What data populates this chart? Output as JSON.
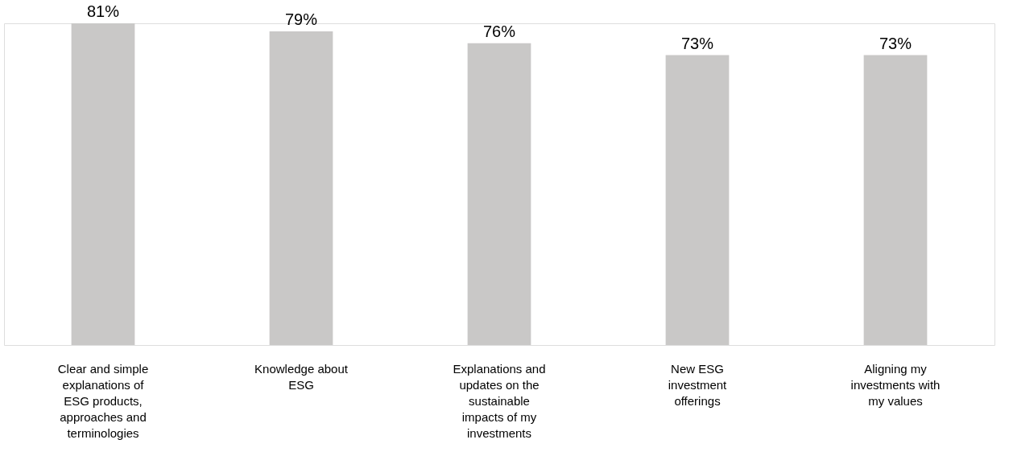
{
  "chart_data": {
    "type": "bar",
    "categories": [
      "Clear and simple explanations of ESG products, approaches and terminologies",
      "Knowledge about ESG",
      "Explanations and updates on the sustainable impacts of my investments",
      "New ESG investment offerings",
      "Aligning my investments with my values"
    ],
    "values": [
      81,
      79,
      76,
      73,
      73
    ],
    "color": "#c9c8c7",
    "data_labels": true,
    "value_labels": [
      "81%",
      "79%",
      "76%",
      "73%",
      "73%"
    ]
  }
}
